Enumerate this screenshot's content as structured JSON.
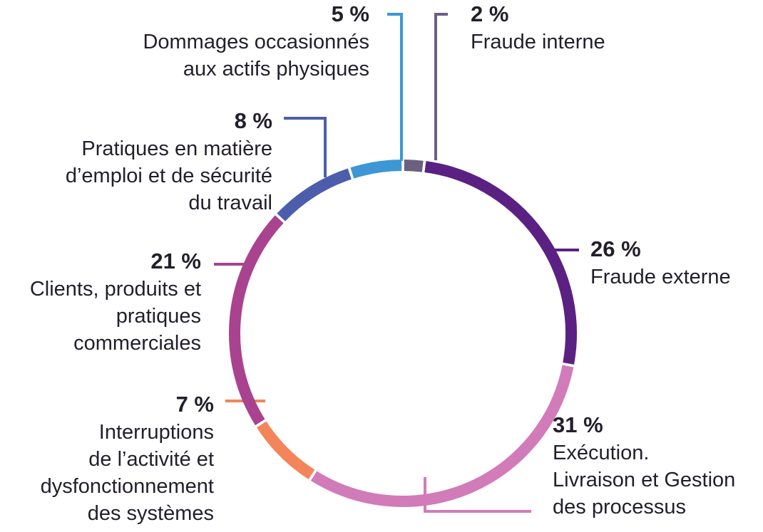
{
  "chart_data": {
    "type": "pie",
    "style": "donut-ring",
    "start_angle_deg": 0,
    "direction": "clockwise",
    "slices": [
      {
        "label_lines": [
          "Fraude interne"
        ],
        "value": 2,
        "value_label": "2 %",
        "color": "#6b6080"
      },
      {
        "label_lines": [
          "Fraude externe"
        ],
        "value": 26,
        "value_label": "26 %",
        "color": "#5a2182"
      },
      {
        "label_lines": [
          "Exécution.",
          "Livraison et Gestion",
          "des processus"
        ],
        "value": 31,
        "value_label": "31 %",
        "color": "#d17bb8"
      },
      {
        "label_lines": [
          "Interruptions",
          "de l’activité et",
          "dysfonctionnement",
          "des systèmes"
        ],
        "value": 7,
        "value_label": "7 %",
        "color": "#f4845a"
      },
      {
        "label_lines": [
          "Clients, produits et",
          "pratiques",
          "commerciales"
        ],
        "value": 21,
        "value_label": "21 %",
        "color": "#a9428f"
      },
      {
        "label_lines": [
          "Pratiques en matière",
          "d’emploi et de sécurité",
          "du travail"
        ],
        "value": 8,
        "value_label": "8 %",
        "color": "#4c5eab"
      },
      {
        "label_lines": [
          "Dommages occasionnés",
          "aux actifs physiques"
        ],
        "value": 5,
        "value_label": "5 %",
        "color": "#3d97d4"
      }
    ]
  }
}
